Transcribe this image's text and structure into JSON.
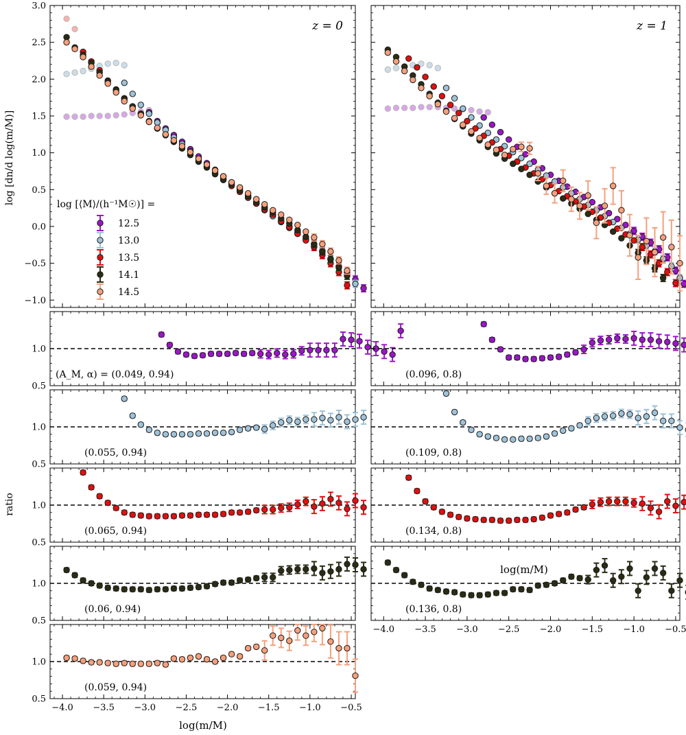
{
  "figure": {
    "y_label_top": "log [dn/d log(m/M)]",
    "y_label_ratio": "ratio",
    "x_label": "log(m/M)",
    "legend_title": "log [⟨M⟩/(h⁻¹M☉)] ="
  },
  "colors": {
    "12.5": "#9b16c8",
    "13.0": "#9fc2d8",
    "13.5": "#e01010",
    "14.1": "#2a2c14",
    "14.5": "#f5a07c",
    "12.5_dim": "#d9a6e6",
    "13.0_dim": "#ccdde8",
    "14.5_dim": "#f5b2b0"
  },
  "chart_data": [
    {
      "id": "main-z0",
      "type": "scatter",
      "panel_label": "z = 0",
      "title": "",
      "xlabel": "log(m/M)",
      "ylabel": "log [dn/d log(m/M)]",
      "xlim": [
        -4.15,
        -0.45
      ],
      "ylim": [
        -1.1,
        3.0
      ],
      "legend": {
        "title": "log [⟨M⟩/(h⁻¹M☉)] =",
        "entries": [
          "12.5",
          "13.0",
          "13.5",
          "14.1",
          "14.5"
        ],
        "placement": "left"
      },
      "series": [
        {
          "name": "12.5",
          "color_key": "12.5",
          "x_start": -2.95,
          "x_step": 0.1,
          "y": [
            1.55,
            1.43,
            1.33,
            1.24,
            1.15,
            1.05,
            0.95,
            0.86,
            0.77,
            0.68,
            0.59,
            0.51,
            0.42,
            0.33,
            0.25,
            0.16,
            0.08,
            0.0,
            -0.08,
            -0.16,
            -0.24,
            -0.33,
            -0.44,
            -0.54,
            -0.63,
            -0.72,
            -0.84
          ]
        },
        {
          "name": "12.5 (low-res)",
          "color_key": "12.5_dim",
          "x_start": -3.95,
          "x_step": 0.1,
          "y": [
            1.49,
            1.49,
            1.49,
            1.5,
            1.5,
            1.5,
            1.51,
            1.52,
            1.54,
            1.56,
            1.58
          ]
        },
        {
          "name": "13.0",
          "color_key": "13.0",
          "x_start": -3.25,
          "x_step": 0.1,
          "y": [
            1.95,
            1.8,
            1.65,
            1.53,
            1.41,
            1.31,
            1.21,
            1.12,
            1.02,
            0.92,
            0.83,
            0.74,
            0.65,
            0.57,
            0.48,
            0.39,
            0.31,
            0.22,
            0.14,
            0.06,
            -0.02,
            -0.1,
            -0.18,
            -0.27,
            -0.35,
            -0.45,
            -0.56,
            -0.67,
            -0.78
          ]
        },
        {
          "name": "13.0 (low-res)",
          "color_key": "13.0_dim",
          "x_start": -3.95,
          "x_step": 0.1,
          "y": [
            2.07,
            2.09,
            2.11,
            2.14,
            2.18,
            2.21,
            2.22,
            2.19
          ]
        },
        {
          "name": "13.5",
          "color_key": "13.5",
          "x_start": -3.75,
          "x_step": 0.1,
          "y": [
            2.37,
            2.24,
            2.12,
            1.98,
            1.86,
            1.74,
            1.63,
            1.53,
            1.43,
            1.33,
            1.24,
            1.15,
            1.06,
            0.97,
            0.88,
            0.8,
            0.71,
            0.63,
            0.55,
            0.47,
            0.39,
            0.31,
            0.23,
            0.16,
            0.07,
            -0.01,
            -0.1,
            -0.19,
            -0.28,
            -0.39,
            -0.5,
            -0.62,
            -0.8
          ]
        },
        {
          "name": "14.1",
          "color_key": "14.1",
          "x_start": -3.95,
          "x_step": 0.1,
          "y": [
            2.57,
            2.43,
            2.33,
            2.22,
            2.09,
            1.97,
            1.85,
            1.73,
            1.63,
            1.53,
            1.42,
            1.33,
            1.24,
            1.15,
            1.06,
            0.97,
            0.89,
            0.81,
            0.72,
            0.64,
            0.57,
            0.49,
            0.41,
            0.33,
            0.26,
            0.19,
            0.11,
            0.04,
            -0.05,
            -0.14,
            -0.24,
            -0.34,
            -0.44,
            -0.55,
            -0.67
          ]
        },
        {
          "name": "14.5",
          "color_key": "14.5",
          "x_start": -3.95,
          "x_step": 0.1,
          "y": [
            2.5,
            2.41,
            2.3,
            2.17,
            2.05,
            1.94,
            1.82,
            1.7,
            1.6,
            1.51,
            1.42,
            1.34,
            1.25,
            1.17,
            1.09,
            1.01,
            0.92,
            0.84,
            0.76,
            0.68,
            0.6,
            0.53,
            0.45,
            0.37,
            0.3,
            0.22,
            0.16,
            0.09,
            0.02,
            -0.07,
            -0.15,
            -0.24,
            -0.34,
            -0.46,
            -0.6
          ]
        },
        {
          "name": "14.5 (low-res)",
          "color_key": "14.5_dim",
          "x_start": -3.95,
          "x_step": 0.1,
          "y": [
            2.82,
            2.68
          ]
        }
      ]
    },
    {
      "id": "main-z1",
      "type": "scatter",
      "panel_label": "z = 1",
      "title": "",
      "xlabel": "log(m/M)",
      "ylabel": "log [dn/d log(m/M)]",
      "xlim": [
        -4.15,
        -0.45
      ],
      "ylim": [
        -1.1,
        3.0
      ],
      "series": [
        {
          "name": "12.5",
          "color_key": "12.5",
          "x_start": -2.8,
          "x_step": 0.1,
          "y": [
            1.48,
            1.38,
            1.28,
            1.18,
            1.08,
            0.98,
            0.88,
            0.79,
            0.7,
            0.62,
            0.54,
            0.47,
            0.4,
            0.33,
            0.26,
            0.18,
            0.1,
            0.02,
            -0.06,
            -0.14,
            -0.22,
            -0.31,
            -0.42,
            -0.6,
            -0.78
          ]
        },
        {
          "name": "12.5 (low-res)",
          "color_key": "12.5_dim",
          "x_start": -3.95,
          "x_step": 0.1,
          "y": [
            1.6,
            1.61,
            1.61,
            1.61,
            1.62,
            1.62,
            1.62,
            1.61,
            1.6,
            1.59,
            1.58,
            1.56,
            1.55
          ]
        },
        {
          "name": "13.0",
          "color_key": "13.0",
          "x_start": -3.25,
          "x_step": 0.1,
          "y": [
            1.88,
            1.74,
            1.6,
            1.48,
            1.37,
            1.27,
            1.18,
            1.09,
            1.01,
            0.93,
            0.85,
            0.77,
            0.69,
            0.61,
            0.53,
            0.45,
            0.37,
            0.29,
            0.22,
            0.14,
            0.06,
            -0.02,
            -0.1,
            -0.18,
            -0.26,
            -0.34,
            -0.44,
            -0.54,
            -0.7
          ]
        },
        {
          "name": "13.0 (low-res)",
          "color_key": "13.0_dim",
          "x_start": -3.95,
          "x_step": 0.1,
          "y": [
            2.13,
            2.15,
            2.17,
            2.19,
            2.21,
            2.19,
            2.15
          ]
        },
        {
          "name": "13.5",
          "color_key": "13.5",
          "x_start": -3.7,
          "x_step": 0.1,
          "y": [
            2.28,
            2.16,
            2.03,
            1.9,
            1.77,
            1.65,
            1.54,
            1.43,
            1.33,
            1.23,
            1.14,
            1.05,
            0.96,
            0.88,
            0.8,
            0.72,
            0.64,
            0.56,
            0.48,
            0.41,
            0.34,
            0.27,
            0.2,
            0.12,
            0.05,
            -0.03,
            -0.11,
            -0.19,
            -0.28,
            -0.38,
            -0.5,
            -0.62,
            -0.77
          ]
        },
        {
          "name": "14.1",
          "color_key": "14.1",
          "x_start": -3.95,
          "x_step": 0.1,
          "y": [
            2.4,
            2.3,
            2.17,
            2.05,
            1.93,
            1.8,
            1.68,
            1.57,
            1.46,
            1.36,
            1.26,
            1.17,
            1.08,
            0.99,
            0.92,
            0.85,
            0.78,
            0.7,
            0.61,
            0.53,
            0.45,
            0.38,
            0.31,
            0.24,
            0.17,
            0.09,
            0.02,
            -0.07,
            -0.16,
            -0.26,
            -0.36,
            -0.46,
            -0.57,
            -0.7
          ]
        },
        {
          "name": "14.5",
          "color_key": "14.5",
          "x_start": -3.95,
          "x_step": 0.1,
          "y": [
            2.36,
            2.24,
            2.11,
            1.99,
            1.88,
            1.77,
            1.66,
            1.56,
            1.47,
            1.38,
            1.29,
            1.2,
            1.11,
            1.04,
            0.97,
            1.05,
            1.08,
            1.06,
            0.72,
            0.55,
            0.45,
            0.62,
            0.37,
            0.28,
            0.42,
            0.05,
            0.28,
            0.55,
            0.22,
            -0.12,
            -0.42,
            -0.2,
            -0.35,
            -0.15,
            -0.28,
            -0.5
          ]
        }
      ]
    },
    {
      "id": "ratio-z0-12.5",
      "type": "scatter",
      "label": "(A_M, α) = (0.049, 0.94)",
      "color_key": "12.5",
      "xlim": [
        -4.15,
        -0.45
      ],
      "ylim": [
        0.5,
        1.5
      ],
      "yticks": [
        0.5,
        1.0
      ],
      "reference_line": 1.0,
      "x_start": -2.8,
      "x_step": 0.1,
      "y": [
        1.19,
        1.05,
        0.96,
        0.92,
        0.9,
        0.91,
        0.93,
        0.93,
        0.93,
        0.94,
        0.93,
        0.94,
        0.93,
        0.92,
        0.94,
        0.92,
        0.93,
        0.97,
        0.98,
        0.98,
        0.98,
        0.98,
        1.13,
        1.12,
        1.1,
        1.02,
        1.0,
        0.96,
        0.92,
        1.24
      ]
    },
    {
      "id": "ratio-z0-13.0",
      "type": "scatter",
      "label": "(0.055, 0.94)",
      "color_key": "13.0",
      "xlim": [
        -4.15,
        -0.45
      ],
      "ylim": [
        0.5,
        1.5
      ],
      "yticks": [
        0.5,
        1.0
      ],
      "reference_line": 1.0,
      "x_start": -3.25,
      "x_step": 0.1,
      "y": [
        1.38,
        1.15,
        1.03,
        0.96,
        0.92,
        0.9,
        0.9,
        0.9,
        0.9,
        0.91,
        0.91,
        0.92,
        0.92,
        0.93,
        0.96,
        0.98,
        0.99,
        0.97,
        1.02,
        1.06,
        1.09,
        1.07,
        1.1,
        1.1,
        1.12,
        1.09,
        1.13,
        1.07,
        1.1,
        1.13
      ]
    },
    {
      "id": "ratio-z0-13.5",
      "type": "scatter",
      "label": "(0.065, 0.94)",
      "color_key": "13.5",
      "xlim": [
        -4.15,
        -0.45
      ],
      "ylim": [
        0.5,
        1.5
      ],
      "yticks": [
        0.5,
        1.0
      ],
      "reference_line": 1.0,
      "x_start": -3.75,
      "x_step": 0.1,
      "y": [
        1.44,
        1.24,
        1.12,
        1.03,
        0.96,
        0.9,
        0.87,
        0.86,
        0.85,
        0.85,
        0.85,
        0.85,
        0.86,
        0.86,
        0.87,
        0.87,
        0.87,
        0.88,
        0.9,
        0.9,
        0.91,
        0.93,
        0.94,
        0.94,
        0.96,
        0.97,
        1.01,
        1.05,
        0.98,
        1.02,
        1.08,
        1.03,
        0.95,
        1.06,
        0.97
      ]
    },
    {
      "id": "ratio-z0-14.1",
      "type": "scatter",
      "label": "(0.06, 0.94)",
      "color_key": "14.1",
      "xlim": [
        -4.15,
        -0.45
      ],
      "ylim": [
        0.5,
        1.5
      ],
      "yticks": [
        0.5,
        1.0
      ],
      "reference_line": 1.0,
      "x_start": -3.95,
      "x_step": 0.1,
      "y": [
        1.18,
        1.11,
        1.04,
        1.0,
        0.97,
        0.94,
        0.93,
        0.92,
        0.92,
        0.92,
        0.91,
        0.92,
        0.92,
        0.93,
        0.93,
        0.94,
        0.95,
        0.96,
        0.99,
        1.01,
        1.01,
        1.04,
        1.05,
        1.07,
        1.08,
        1.08,
        1.17,
        1.18,
        1.19,
        1.19,
        1.2,
        1.14,
        1.16,
        1.19,
        1.26,
        1.25,
        1.19
      ]
    },
    {
      "id": "ratio-z0-14.5",
      "type": "scatter",
      "label": "(0.059, 0.94)",
      "color_key": "14.5",
      "xlim": [
        -4.15,
        -0.45
      ],
      "ylim": [
        0.5,
        1.5
      ],
      "yticks": [
        0.5,
        1.0
      ],
      "reference_line": 1.0,
      "x_start": -3.95,
      "x_step": 0.1,
      "y": [
        1.05,
        1.04,
        1.01,
        0.99,
        0.99,
        0.98,
        0.97,
        0.98,
        0.97,
        0.97,
        0.97,
        0.98,
        0.96,
        1.04,
        1.03,
        1.05,
        1.07,
        1.03,
        1.0,
        1.05,
        1.1,
        1.07,
        1.18,
        1.2,
        1.15,
        1.35,
        1.32,
        1.28,
        1.42,
        1.35,
        1.4,
        1.45,
        1.27,
        1.18,
        1.18,
        0.81
      ]
    },
    {
      "id": "ratio-z1-12.5",
      "type": "scatter",
      "label": "(0.096, 0.8)",
      "color_key": "12.5",
      "xlim": [
        -4.15,
        -0.45
      ],
      "ylim": [
        0.5,
        1.5
      ],
      "yticks": [
        0.5,
        1.0
      ],
      "reference_line": 1.0,
      "x_start": -2.8,
      "x_step": 0.1,
      "y": [
        1.33,
        1.12,
        0.99,
        0.88,
        0.88,
        0.86,
        0.86,
        0.87,
        0.88,
        0.89,
        0.92,
        0.95,
        0.99,
        1.08,
        1.11,
        1.12,
        1.14,
        1.13,
        1.14,
        1.12,
        1.12,
        1.1,
        1.09,
        1.07,
        1.05,
        0.87,
        0.87
      ]
    },
    {
      "id": "ratio-z1-13.0",
      "type": "scatter",
      "label": "(0.109, 0.8)",
      "color_key": "13.0",
      "xlim": [
        -4.15,
        -0.45
      ],
      "ylim": [
        0.5,
        1.5
      ],
      "yticks": [
        0.5,
        1.0
      ],
      "reference_line": 1.0,
      "x_start": -3.25,
      "x_step": 0.1,
      "y": [
        1.45,
        1.2,
        1.06,
        0.96,
        0.9,
        0.87,
        0.85,
        0.83,
        0.83,
        0.84,
        0.84,
        0.85,
        0.87,
        0.91,
        0.95,
        0.98,
        1.02,
        1.08,
        1.12,
        1.14,
        1.15,
        1.18,
        1.17,
        1.12,
        1.14,
        1.19,
        1.08,
        1.08,
        0.99,
        0.96,
        0.93
      ]
    },
    {
      "id": "ratio-z1-13.5",
      "type": "scatter",
      "label": "(0.134, 0.8)",
      "color_key": "13.5",
      "xlim": [
        -4.15,
        -0.45
      ],
      "ylim": [
        0.5,
        1.5
      ],
      "yticks": [
        0.5,
        1.0
      ],
      "reference_line": 1.0,
      "x_start": -3.7,
      "x_step": 0.1,
      "y": [
        1.37,
        1.19,
        1.05,
        0.97,
        0.91,
        0.87,
        0.84,
        0.82,
        0.81,
        0.8,
        0.8,
        0.79,
        0.79,
        0.8,
        0.8,
        0.81,
        0.83,
        0.86,
        0.88,
        0.9,
        0.94,
        0.97,
        1.01,
        1.04,
        1.05,
        1.05,
        1.05,
        1.03,
        1.02,
        0.96,
        0.91,
        1.05,
        0.99,
        1.04,
        0.84,
        0.66
      ]
    },
    {
      "id": "ratio-z1-14.1",
      "type": "scatter",
      "label": "(0.136, 0.8)",
      "color_key": "14.1",
      "xlim": [
        -4.15,
        -0.45
      ],
      "ylim": [
        0.5,
        1.5
      ],
      "yticks": [
        0.5,
        1.0
      ],
      "reference_line": 1.0,
      "x_start": -3.95,
      "x_step": 0.1,
      "y": [
        1.28,
        1.18,
        1.11,
        1.02,
        0.98,
        0.93,
        0.91,
        0.89,
        0.88,
        0.85,
        0.84,
        0.84,
        0.85,
        0.87,
        0.87,
        0.92,
        0.92,
        0.91,
        0.97,
        0.98,
        1.0,
        1.04,
        1.09,
        1.07,
        1.05,
        1.18,
        1.24,
        1.04,
        1.09,
        1.2,
        0.9,
        1.08,
        1.2,
        1.14,
        0.9,
        1.04,
        0.88,
        0.88
      ]
    }
  ],
  "z0_labels": {
    "panel": "z = 0",
    "x_ticks": [
      "−4.0",
      "−3.5",
      "−3.0",
      "−2.5",
      "−2.0",
      "−1.5",
      "−1.0",
      "−0.5"
    ],
    "y_ticks": [
      "−1.0",
      "−0.5",
      "0.0",
      "0.5",
      "1.0",
      "1.5",
      "2.0",
      "2.5",
      "3.0"
    ]
  },
  "z1_labels": {
    "panel": "z = 1"
  },
  "ratio_ticks": [
    "0.5",
    "1.0"
  ]
}
